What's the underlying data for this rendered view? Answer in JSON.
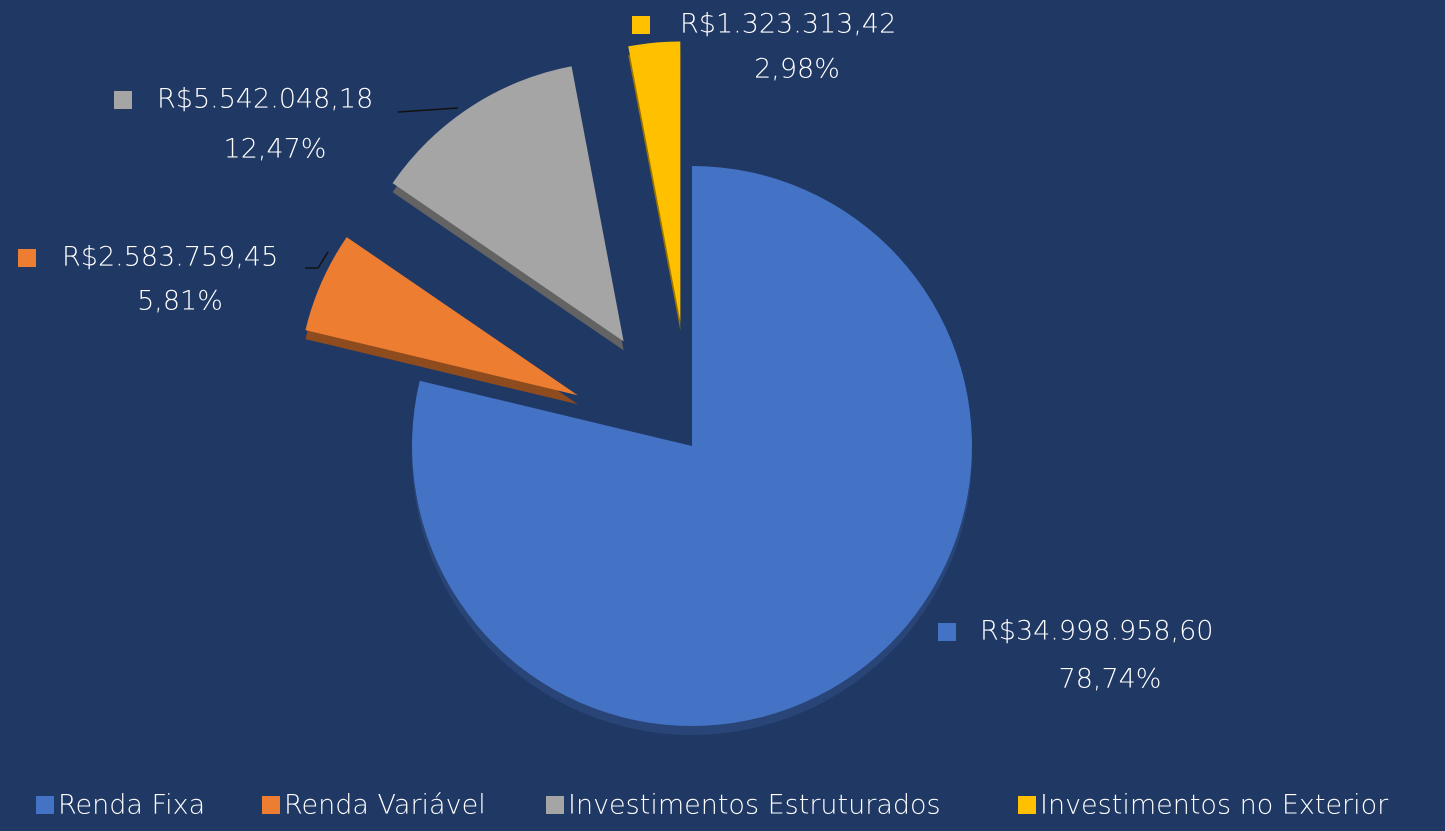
{
  "chart_data": {
    "type": "pie",
    "categories": [
      "Renda Fixa",
      "Renda Variável",
      "Investimentos Estruturados",
      "Investimentos no Exterior"
    ],
    "values": [
      34998958.6,
      2583759.45,
      5542048.18,
      1323313.42
    ],
    "value_labels": [
      "R$34.998.958,60",
      "R$2.583.759,45",
      "R$5.542.048,18",
      "R$1.323.313,42"
    ],
    "percentages": [
      78.74,
      5.81,
      12.47,
      2.98
    ],
    "percentage_labels": [
      "78,74%",
      "5,81%",
      "12,47%",
      "2,98%"
    ],
    "colors": [
      "#4472c4",
      "#ed7d31",
      "#a5a5a5",
      "#ffc000"
    ],
    "legend": "bottom"
  }
}
